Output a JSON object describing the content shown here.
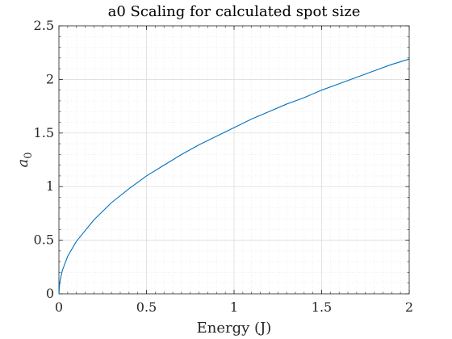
{
  "chart_data": {
    "type": "line",
    "title": "a0 Scaling for calculated spot size",
    "xlabel": "Energy (J)",
    "ylabel_base": "a",
    "ylabel_sub": "0",
    "xlim": [
      0,
      2
    ],
    "ylim": [
      0,
      2.5
    ],
    "xticks": [
      0,
      0.5,
      1,
      1.5,
      2
    ],
    "xtick_labels": [
      "0",
      "0.5",
      "1",
      "1.5",
      "2"
    ],
    "yticks": [
      0,
      0.5,
      1,
      1.5,
      2,
      2.5
    ],
    "ytick_labels": [
      "0",
      "0.5",
      "1",
      "1.5",
      "2",
      "2.5"
    ],
    "grid": true,
    "minor_grid": true,
    "series": [
      {
        "color": "#0072BD",
        "x": [
          0,
          0.005,
          0.02,
          0.05,
          0.1,
          0.2,
          0.3,
          0.4,
          0.5,
          0.6,
          0.7,
          0.8,
          0.9,
          1.0,
          1.1,
          1.2,
          1.3,
          1.4,
          1.5,
          1.6,
          1.7,
          1.8,
          1.9,
          2.0
        ],
        "y": [
          0,
          0.11,
          0.22,
          0.35,
          0.49,
          0.69,
          0.85,
          0.98,
          1.1,
          1.2,
          1.3,
          1.39,
          1.47,
          1.55,
          1.63,
          1.7,
          1.77,
          1.83,
          1.9,
          1.96,
          2.02,
          2.08,
          2.14,
          2.19
        ]
      }
    ]
  }
}
